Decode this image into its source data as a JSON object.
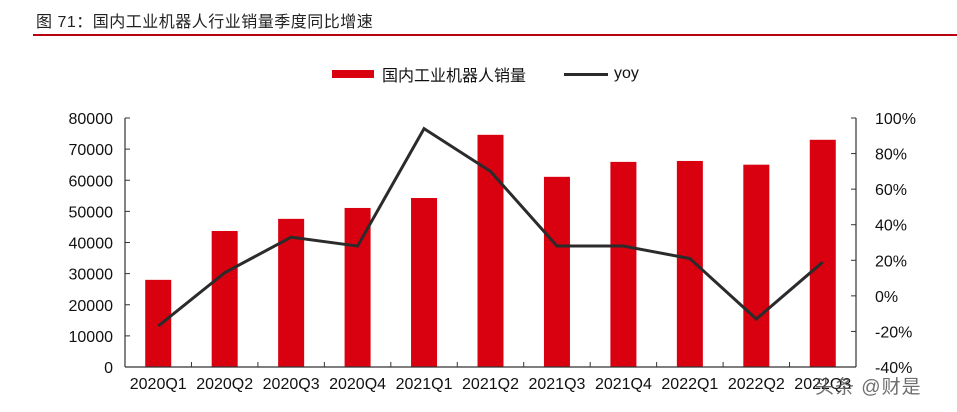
{
  "header": {
    "title": "图 71：国内工业机器人行业销量季度同比增速",
    "rule_color": "#b8000e"
  },
  "legend": {
    "bar_label": "国内工业机器人销量",
    "line_label": "yoy"
  },
  "watermark": "头条 @财是",
  "colors": {
    "bar": "#d9000f",
    "line": "#2b2b2b",
    "axis": "#333333"
  },
  "chart_data": {
    "type": "bar+line",
    "title": "图 71：国内工业机器人行业销量季度同比增速",
    "categories": [
      "2020Q1",
      "2020Q2",
      "2020Q3",
      "2020Q4",
      "2021Q1",
      "2021Q2",
      "2021Q3",
      "2021Q4",
      "2022Q1",
      "2022Q2",
      "2022Q3"
    ],
    "series": [
      {
        "name": "国内工业机器人销量",
        "type": "bar",
        "axis": "left",
        "values": [
          28000,
          43700,
          47600,
          51100,
          54300,
          74600,
          61100,
          65900,
          66200,
          65000,
          73000
        ]
      },
      {
        "name": "yoy",
        "type": "line",
        "axis": "right",
        "unit": "%",
        "values": [
          -17,
          13,
          33,
          28,
          94,
          70,
          28,
          28,
          21,
          -13,
          19
        ]
      }
    ],
    "left_axis": {
      "ylim": [
        0,
        80000
      ],
      "ticks": [
        "0",
        "10000",
        "20000",
        "30000",
        "40000",
        "50000",
        "60000",
        "70000",
        "80000"
      ]
    },
    "right_axis": {
      "ylim": [
        -40,
        100
      ],
      "ticks": [
        "-40%",
        "-20%",
        "0%",
        "20%",
        "40%",
        "60%",
        "80%",
        "100%"
      ]
    },
    "xlabel": "",
    "ylabel": "",
    "grid": false,
    "legend_position": "top"
  }
}
